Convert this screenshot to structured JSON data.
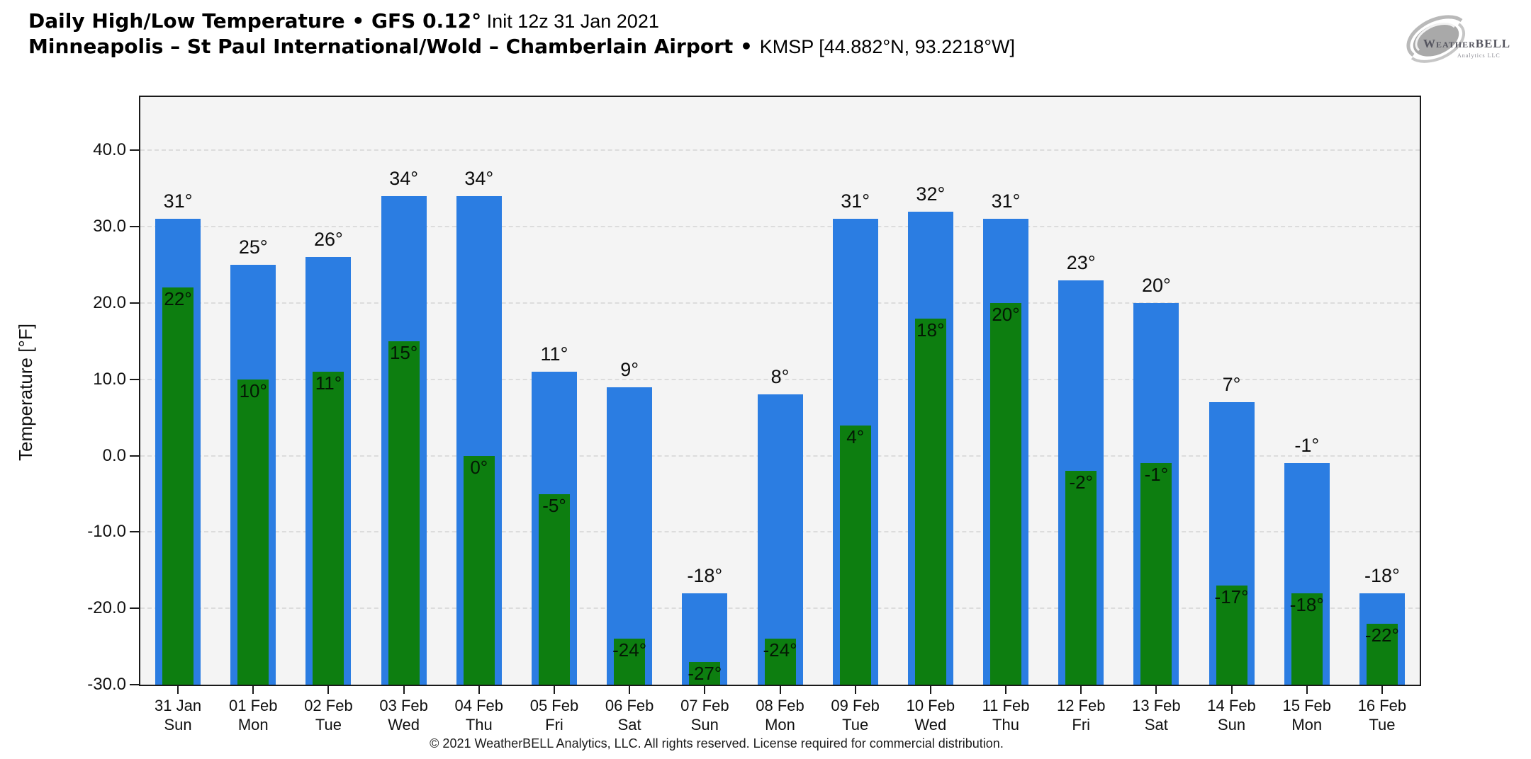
{
  "header": {
    "title_bold": "Daily High/Low Temperature • GFS 0.12°",
    "title_regular": " Init 12z 31 Jan 2021",
    "subtitle_bold": "Minneapolis – St Paul International/Wold – Chamberlain Airport",
    "subtitle_separator": " • ",
    "subtitle_regular": "KMSP [44.882°N, 93.2218°W]"
  },
  "logo": {
    "text_main": "WeatherBELL",
    "text_sub": "Analytics LLC"
  },
  "chart_data": {
    "type": "bar",
    "title": "Daily High/Low Temperature",
    "ylabel": "Temperature [°F]",
    "ylim": [
      -30,
      47
    ],
    "bar_base": -30,
    "grid": "horizontal-dashed",
    "legend_position": "none",
    "value_suffix": "°",
    "yticks": [
      40,
      30,
      20,
      10,
      0,
      -10,
      -20,
      -30
    ],
    "ytick_labels": [
      "40.0",
      "30.0",
      "20.0",
      "10.0",
      "0.0",
      "-10.0",
      "-20.0",
      "-30.0"
    ],
    "categories": [
      "31 Jan",
      "01 Feb",
      "02 Feb",
      "03 Feb",
      "04 Feb",
      "05 Feb",
      "06 Feb",
      "07 Feb",
      "08 Feb",
      "09 Feb",
      "10 Feb",
      "11 Feb",
      "12 Feb",
      "13 Feb",
      "14 Feb",
      "15 Feb",
      "16 Feb"
    ],
    "weekdays": [
      "Sun",
      "Mon",
      "Tue",
      "Wed",
      "Thu",
      "Fri",
      "Sat",
      "Sun",
      "Mon",
      "Tue",
      "Wed",
      "Thu",
      "Fri",
      "Sat",
      "Sun",
      "Mon",
      "Tue"
    ],
    "series": [
      {
        "name": "High",
        "color": "#2b7de2",
        "values": [
          31,
          25,
          26,
          34,
          34,
          11,
          9,
          -18,
          8,
          31,
          32,
          31,
          23,
          20,
          7,
          -1,
          -18
        ]
      },
      {
        "name": "Low",
        "color": "#0d7e10",
        "values": [
          22,
          10,
          11,
          15,
          0,
          -5,
          -24,
          -27,
          -24,
          4,
          18,
          20,
          -2,
          -1,
          -17,
          -18,
          -22
        ]
      }
    ]
  },
  "colors": {
    "high_bar": "#2b7de2",
    "low_bar": "#0d7e10",
    "plot_background": "#f4f4f4",
    "gridline": "#dcdcdc",
    "axis": "#1a1a1a",
    "logo_gray": "#b0b0b0"
  },
  "footer": {
    "copyright": "© 2021 WeatherBELL Analytics, LLC. All rights reserved. License required for commercial distribution."
  }
}
